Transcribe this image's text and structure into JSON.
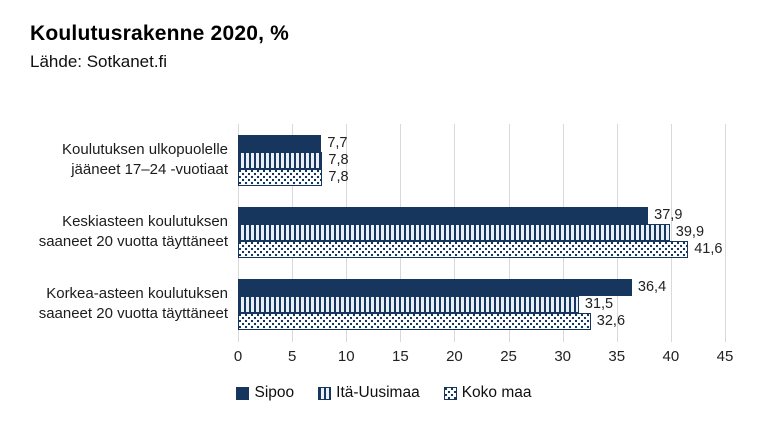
{
  "header": {
    "title": "Koulutusrakenne 2020, %",
    "source": "Lähde: Sotkanet.fi"
  },
  "colors": {
    "navy": "#17365D",
    "gridline": "#d9d9d9",
    "pattern_light": "#e9eff8",
    "background": "#ffffff"
  },
  "chart_data": {
    "type": "bar",
    "orientation": "horizontal",
    "title": "Koulutusrakenne 2020, %",
    "subtitle": "Lähde: Sotkanet.fi",
    "categories": [
      "Koulutuksen ulkopuolelle jääneet 17–24 -vuotiaat",
      "Keskiasteen koulutuksen saaneet 20 vuotta täyttäneet",
      "Korkea-asteen koulutuksen saaneet 20 vuotta täyttäneet"
    ],
    "series": [
      {
        "name": "Sipoo",
        "pattern": "solid",
        "values": [
          7.7,
          37.9,
          36.4
        ]
      },
      {
        "name": "Itä-Uusimaa",
        "pattern": "vertical-stripes",
        "values": [
          7.8,
          39.9,
          31.5
        ]
      },
      {
        "name": "Koko maa",
        "pattern": "dots",
        "values": [
          7.8,
          41.6,
          32.6
        ]
      }
    ],
    "value_label_decimal_separator": ",",
    "xlim": [
      0,
      45
    ],
    "xticks": [
      0,
      5,
      10,
      15,
      20,
      25,
      30,
      35,
      40,
      45
    ],
    "grid": true,
    "legend_position": "bottom"
  }
}
